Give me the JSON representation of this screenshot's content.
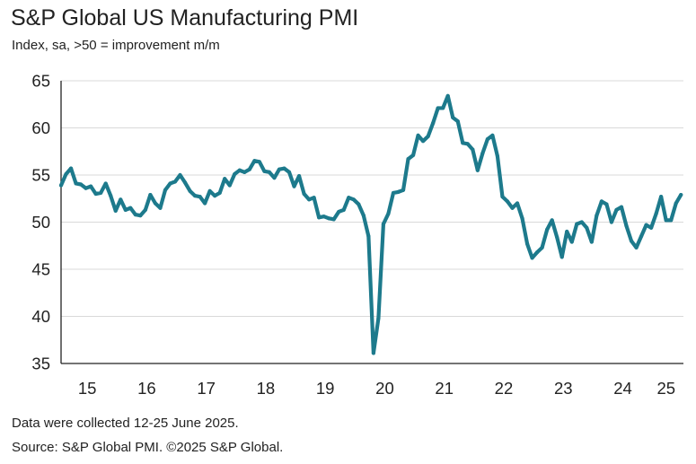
{
  "header": {
    "title": "S&P Global US Manufacturing PMI",
    "subtitle": "Index, sa, >50 = improvement m/m"
  },
  "footer": {
    "note": "Data were collected 12-25 June 2025.",
    "source": "Source: S&P Global PMI. ©2025 S&P Global."
  },
  "colors": {
    "line": "#1d7a8c",
    "axis": "#222222",
    "grid": "#d9d9d9",
    "text": "#222222"
  },
  "chart_data": {
    "type": "line",
    "title": "S&P Global US Manufacturing PMI",
    "subtitle": "Index, sa, >50 = improvement m/m",
    "xlabel": "",
    "ylabel": "",
    "ylim": [
      35,
      65
    ],
    "yticks": [
      35,
      40,
      45,
      50,
      55,
      60,
      65
    ],
    "xticks": [
      "15",
      "16",
      "17",
      "18",
      "19",
      "20",
      "21",
      "22",
      "23",
      "24",
      "25"
    ],
    "xticks_years": [
      2015,
      2016,
      2017,
      2018,
      2019,
      2020,
      2021,
      2022,
      2023,
      2024,
      2025
    ],
    "grid": "horizontal",
    "series": [
      {
        "name": "",
        "start": "2015-01",
        "frequency": "monthly",
        "values": [
          53.9,
          55.1,
          55.7,
          54.1,
          54.0,
          53.6,
          53.8,
          53.0,
          53.1,
          54.1,
          52.8,
          51.2,
          52.4,
          51.3,
          51.5,
          50.8,
          50.7,
          51.3,
          52.9,
          52.0,
          51.5,
          53.4,
          54.1,
          54.3,
          55.0,
          54.2,
          53.3,
          52.8,
          52.7,
          52.0,
          53.3,
          52.8,
          53.1,
          54.6,
          53.9,
          55.1,
          55.5,
          55.3,
          55.6,
          56.5,
          56.4,
          55.4,
          55.3,
          54.7,
          55.6,
          55.7,
          55.3,
          53.8,
          54.9,
          53.0,
          52.4,
          52.6,
          50.5,
          50.6,
          50.4,
          50.3,
          51.1,
          51.3,
          52.6,
          52.4,
          51.9,
          50.7,
          48.5,
          36.1,
          39.8,
          49.8,
          50.9,
          53.1,
          53.2,
          53.4,
          56.7,
          57.1,
          59.2,
          58.6,
          59.1,
          60.5,
          62.1,
          62.1,
          63.4,
          61.1,
          60.7,
          58.4,
          58.3,
          57.7,
          55.5,
          57.3,
          58.8,
          59.2,
          57.0,
          52.7,
          52.2,
          51.5,
          52.0,
          50.4,
          47.7,
          46.2,
          46.8,
          47.3,
          49.2,
          50.2,
          48.4,
          46.3,
          49.0,
          47.9,
          49.8,
          50.0,
          49.4,
          47.9,
          50.7,
          52.2,
          51.9,
          50.0,
          51.3,
          51.6,
          49.6,
          48.0,
          47.3,
          48.5,
          49.7,
          49.4,
          50.9,
          52.7,
          50.2,
          50.2,
          52.0,
          52.9
        ]
      }
    ]
  }
}
